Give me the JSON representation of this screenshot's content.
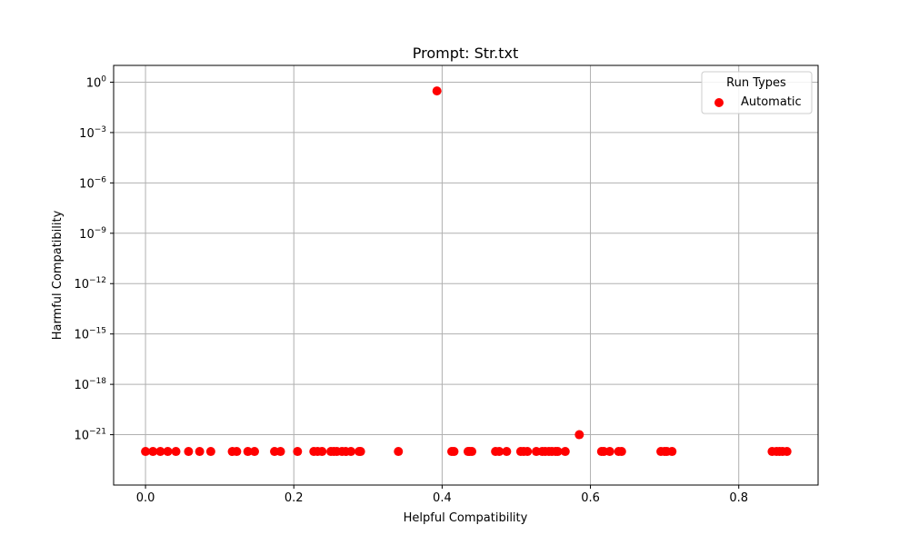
{
  "chart_data": {
    "type": "scatter",
    "title": "Prompt: Str.txt",
    "xlabel": "Helpful Compatibility",
    "ylabel": "Harmful Compatibility",
    "x_scale": "linear",
    "y_scale": "log",
    "xlim": [
      -0.043,
      0.907
    ],
    "ylim": [
      1e-24,
      10
    ],
    "x_ticks": [
      0.0,
      0.2,
      0.4,
      0.6,
      0.8
    ],
    "x_tick_labels": [
      "0.0",
      "0.2",
      "0.4",
      "0.6",
      "0.8"
    ],
    "y_ticks": [
      1,
      0.001,
      1e-06,
      1e-09,
      1e-12,
      1e-15,
      1e-18,
      1e-21
    ],
    "y_tick_labels": [
      {
        "base": "10",
        "exp": "0"
      },
      {
        "base": "10",
        "exp": "−3"
      },
      {
        "base": "10",
        "exp": "−6"
      },
      {
        "base": "10",
        "exp": "−9"
      },
      {
        "base": "10",
        "exp": "−12"
      },
      {
        "base": "10",
        "exp": "−15"
      },
      {
        "base": "10",
        "exp": "−18"
      },
      {
        "base": "10",
        "exp": "−21"
      }
    ],
    "grid": true,
    "legend": {
      "title": "Run Types",
      "placement": "top-right"
    },
    "series": [
      {
        "name": "Automatic",
        "color": "#ff0000",
        "points": [
          {
            "x": 0.0,
            "y": 1e-22
          },
          {
            "x": 0.01,
            "y": 1e-22
          },
          {
            "x": 0.02,
            "y": 1e-22
          },
          {
            "x": 0.03,
            "y": 1e-22
          },
          {
            "x": 0.041,
            "y": 1e-22
          },
          {
            "x": 0.058,
            "y": 1e-22
          },
          {
            "x": 0.073,
            "y": 1e-22
          },
          {
            "x": 0.088,
            "y": 1e-22
          },
          {
            "x": 0.117,
            "y": 1e-22
          },
          {
            "x": 0.123,
            "y": 1e-22
          },
          {
            "x": 0.138,
            "y": 1e-22
          },
          {
            "x": 0.147,
            "y": 1e-22
          },
          {
            "x": 0.174,
            "y": 1e-22
          },
          {
            "x": 0.182,
            "y": 1e-22
          },
          {
            "x": 0.205,
            "y": 1e-22
          },
          {
            "x": 0.227,
            "y": 1e-22
          },
          {
            "x": 0.232,
            "y": 1e-22
          },
          {
            "x": 0.238,
            "y": 1e-22
          },
          {
            "x": 0.25,
            "y": 1e-22
          },
          {
            "x": 0.254,
            "y": 1e-22
          },
          {
            "x": 0.258,
            "y": 1e-22
          },
          {
            "x": 0.265,
            "y": 1e-22
          },
          {
            "x": 0.27,
            "y": 1e-22
          },
          {
            "x": 0.277,
            "y": 1e-22
          },
          {
            "x": 0.288,
            "y": 1e-22
          },
          {
            "x": 0.29,
            "y": 1e-22
          },
          {
            "x": 0.341,
            "y": 1e-22
          },
          {
            "x": 0.393,
            "y": 0.3
          },
          {
            "x": 0.413,
            "y": 1e-22
          },
          {
            "x": 0.416,
            "y": 1e-22
          },
          {
            "x": 0.435,
            "y": 1e-22
          },
          {
            "x": 0.437,
            "y": 1e-22
          },
          {
            "x": 0.44,
            "y": 1e-22
          },
          {
            "x": 0.472,
            "y": 1e-22
          },
          {
            "x": 0.477,
            "y": 1e-22
          },
          {
            "x": 0.487,
            "y": 1e-22
          },
          {
            "x": 0.506,
            "y": 1e-22
          },
          {
            "x": 0.51,
            "y": 1e-22
          },
          {
            "x": 0.515,
            "y": 1e-22
          },
          {
            "x": 0.527,
            "y": 1e-22
          },
          {
            "x": 0.535,
            "y": 1e-22
          },
          {
            "x": 0.539,
            "y": 1e-22
          },
          {
            "x": 0.544,
            "y": 1e-22
          },
          {
            "x": 0.548,
            "y": 1e-22
          },
          {
            "x": 0.553,
            "y": 1e-22
          },
          {
            "x": 0.556,
            "y": 1e-22
          },
          {
            "x": 0.566,
            "y": 1e-22
          },
          {
            "x": 0.585,
            "y": 1e-21
          },
          {
            "x": 0.615,
            "y": 1e-22
          },
          {
            "x": 0.618,
            "y": 1e-22
          },
          {
            "x": 0.626,
            "y": 1e-22
          },
          {
            "x": 0.638,
            "y": 1e-22
          },
          {
            "x": 0.642,
            "y": 1e-22
          },
          {
            "x": 0.695,
            "y": 1e-22
          },
          {
            "x": 0.7,
            "y": 1e-22
          },
          {
            "x": 0.703,
            "y": 1e-22
          },
          {
            "x": 0.71,
            "y": 1e-22
          },
          {
            "x": 0.845,
            "y": 1e-22
          },
          {
            "x": 0.851,
            "y": 1e-22
          },
          {
            "x": 0.855,
            "y": 1e-22
          },
          {
            "x": 0.859,
            "y": 1e-22
          },
          {
            "x": 0.865,
            "y": 1e-22
          }
        ]
      }
    ]
  }
}
